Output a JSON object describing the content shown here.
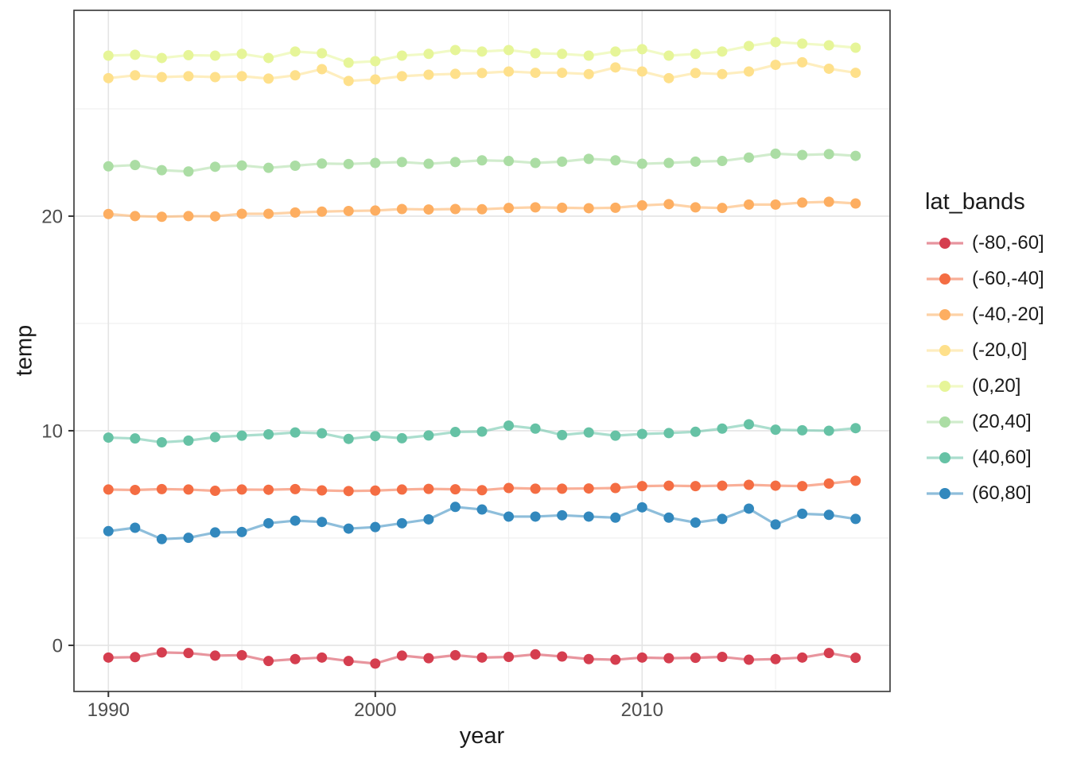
{
  "figure": {
    "background": "#FFFFFF",
    "panel_border_color": "#404040",
    "grid_major_color": "#E4E4E4",
    "grid_minor_color": "#EFEFEF",
    "axis_text_color": "#4D4D4D",
    "axis_title_color": "#1A1A1A",
    "tick_mark_color": "#333333"
  },
  "chart_data": {
    "type": "line",
    "title": "",
    "xlabel": "year",
    "ylabel": "temp",
    "legend_title": "lat_bands",
    "legend_position": "right",
    "grid": true,
    "marker": "point",
    "line_opacity": 0.55,
    "xlim": [
      1988.71,
      2019.29
    ],
    "ylim": [
      -2.15,
      29.59
    ],
    "x_major_ticks": [
      1990,
      2000,
      2010
    ],
    "x_minor_ticks": [
      1995,
      2005,
      2015
    ],
    "y_major_ticks": [
      0,
      10,
      20
    ],
    "y_minor_ticks": [
      5,
      15,
      25
    ],
    "x": [
      1990,
      1991,
      1992,
      1993,
      1994,
      1995,
      1996,
      1997,
      1998,
      1999,
      2000,
      2001,
      2002,
      2003,
      2004,
      2005,
      2006,
      2007,
      2008,
      2009,
      2010,
      2011,
      2012,
      2013,
      2014,
      2015,
      2016,
      2017,
      2018
    ],
    "series": [
      {
        "name": "(-80,-60]",
        "color": "#D53E4F",
        "values": [
          -0.57,
          -0.55,
          -0.33,
          -0.36,
          -0.48,
          -0.46,
          -0.73,
          -0.64,
          -0.57,
          -0.73,
          -0.85,
          -0.48,
          -0.6,
          -0.46,
          -0.57,
          -0.54,
          -0.42,
          -0.52,
          -0.64,
          -0.67,
          -0.57,
          -0.6,
          -0.58,
          -0.54,
          -0.67,
          -0.64,
          -0.57,
          -0.36,
          -0.58
        ]
      },
      {
        "name": "(-60,-40]",
        "color": "#F46D43",
        "values": [
          7.26,
          7.24,
          7.28,
          7.26,
          7.2,
          7.26,
          7.25,
          7.28,
          7.22,
          7.19,
          7.21,
          7.26,
          7.29,
          7.27,
          7.23,
          7.33,
          7.3,
          7.3,
          7.31,
          7.33,
          7.42,
          7.44,
          7.42,
          7.44,
          7.48,
          7.44,
          7.42,
          7.54,
          7.67
        ]
      },
      {
        "name": "(-40,-20]",
        "color": "#FDAE61",
        "values": [
          20.1,
          20.0,
          19.97,
          20.0,
          19.99,
          20.11,
          20.11,
          20.17,
          20.21,
          20.24,
          20.26,
          20.33,
          20.31,
          20.33,
          20.32,
          20.38,
          20.41,
          20.39,
          20.37,
          20.39,
          20.5,
          20.56,
          20.41,
          20.38,
          20.54,
          20.54,
          20.63,
          20.67,
          20.59
        ]
      },
      {
        "name": "(-20,0]",
        "color": "#FEE08B",
        "values": [
          26.43,
          26.56,
          26.48,
          26.52,
          26.48,
          26.52,
          26.41,
          26.56,
          26.85,
          26.3,
          26.37,
          26.52,
          26.59,
          26.63,
          26.67,
          26.74,
          26.68,
          26.68,
          26.62,
          26.93,
          26.74,
          26.43,
          26.67,
          26.62,
          26.74,
          27.05,
          27.17,
          26.87,
          26.68
        ]
      },
      {
        "name": "(0,20]",
        "color": "#E6F598",
        "values": [
          27.48,
          27.52,
          27.37,
          27.5,
          27.48,
          27.56,
          27.37,
          27.67,
          27.59,
          27.15,
          27.22,
          27.48,
          27.56,
          27.74,
          27.67,
          27.74,
          27.59,
          27.56,
          27.48,
          27.67,
          27.78,
          27.48,
          27.56,
          27.67,
          27.93,
          28.11,
          28.04,
          27.96,
          27.85
        ]
      },
      {
        "name": "(20,40]",
        "color": "#ABDDA4",
        "values": [
          22.32,
          22.38,
          22.14,
          22.08,
          22.3,
          22.36,
          22.25,
          22.35,
          22.45,
          22.43,
          22.48,
          22.52,
          22.44,
          22.52,
          22.6,
          22.57,
          22.48,
          22.54,
          22.67,
          22.6,
          22.44,
          22.48,
          22.54,
          22.57,
          22.73,
          22.91,
          22.85,
          22.89,
          22.81
        ]
      },
      {
        "name": "(40,60]",
        "color": "#66C2A5",
        "values": [
          9.68,
          9.64,
          9.46,
          9.54,
          9.7,
          9.77,
          9.83,
          9.92,
          9.88,
          9.62,
          9.75,
          9.65,
          9.78,
          9.94,
          9.96,
          10.24,
          10.1,
          9.8,
          9.92,
          9.77,
          9.85,
          9.89,
          9.95,
          10.1,
          10.3,
          10.05,
          10.02,
          10.0,
          10.12
        ]
      },
      {
        "name": "(60,80]",
        "color": "#3288BD",
        "values": [
          5.32,
          5.48,
          4.95,
          5.01,
          5.26,
          5.28,
          5.69,
          5.81,
          5.75,
          5.44,
          5.51,
          5.69,
          5.87,
          6.45,
          6.33,
          6.0,
          6.0,
          6.06,
          6.0,
          5.95,
          6.43,
          5.95,
          5.72,
          5.89,
          6.37,
          5.63,
          6.13,
          6.08,
          5.89
        ]
      }
    ]
  }
}
